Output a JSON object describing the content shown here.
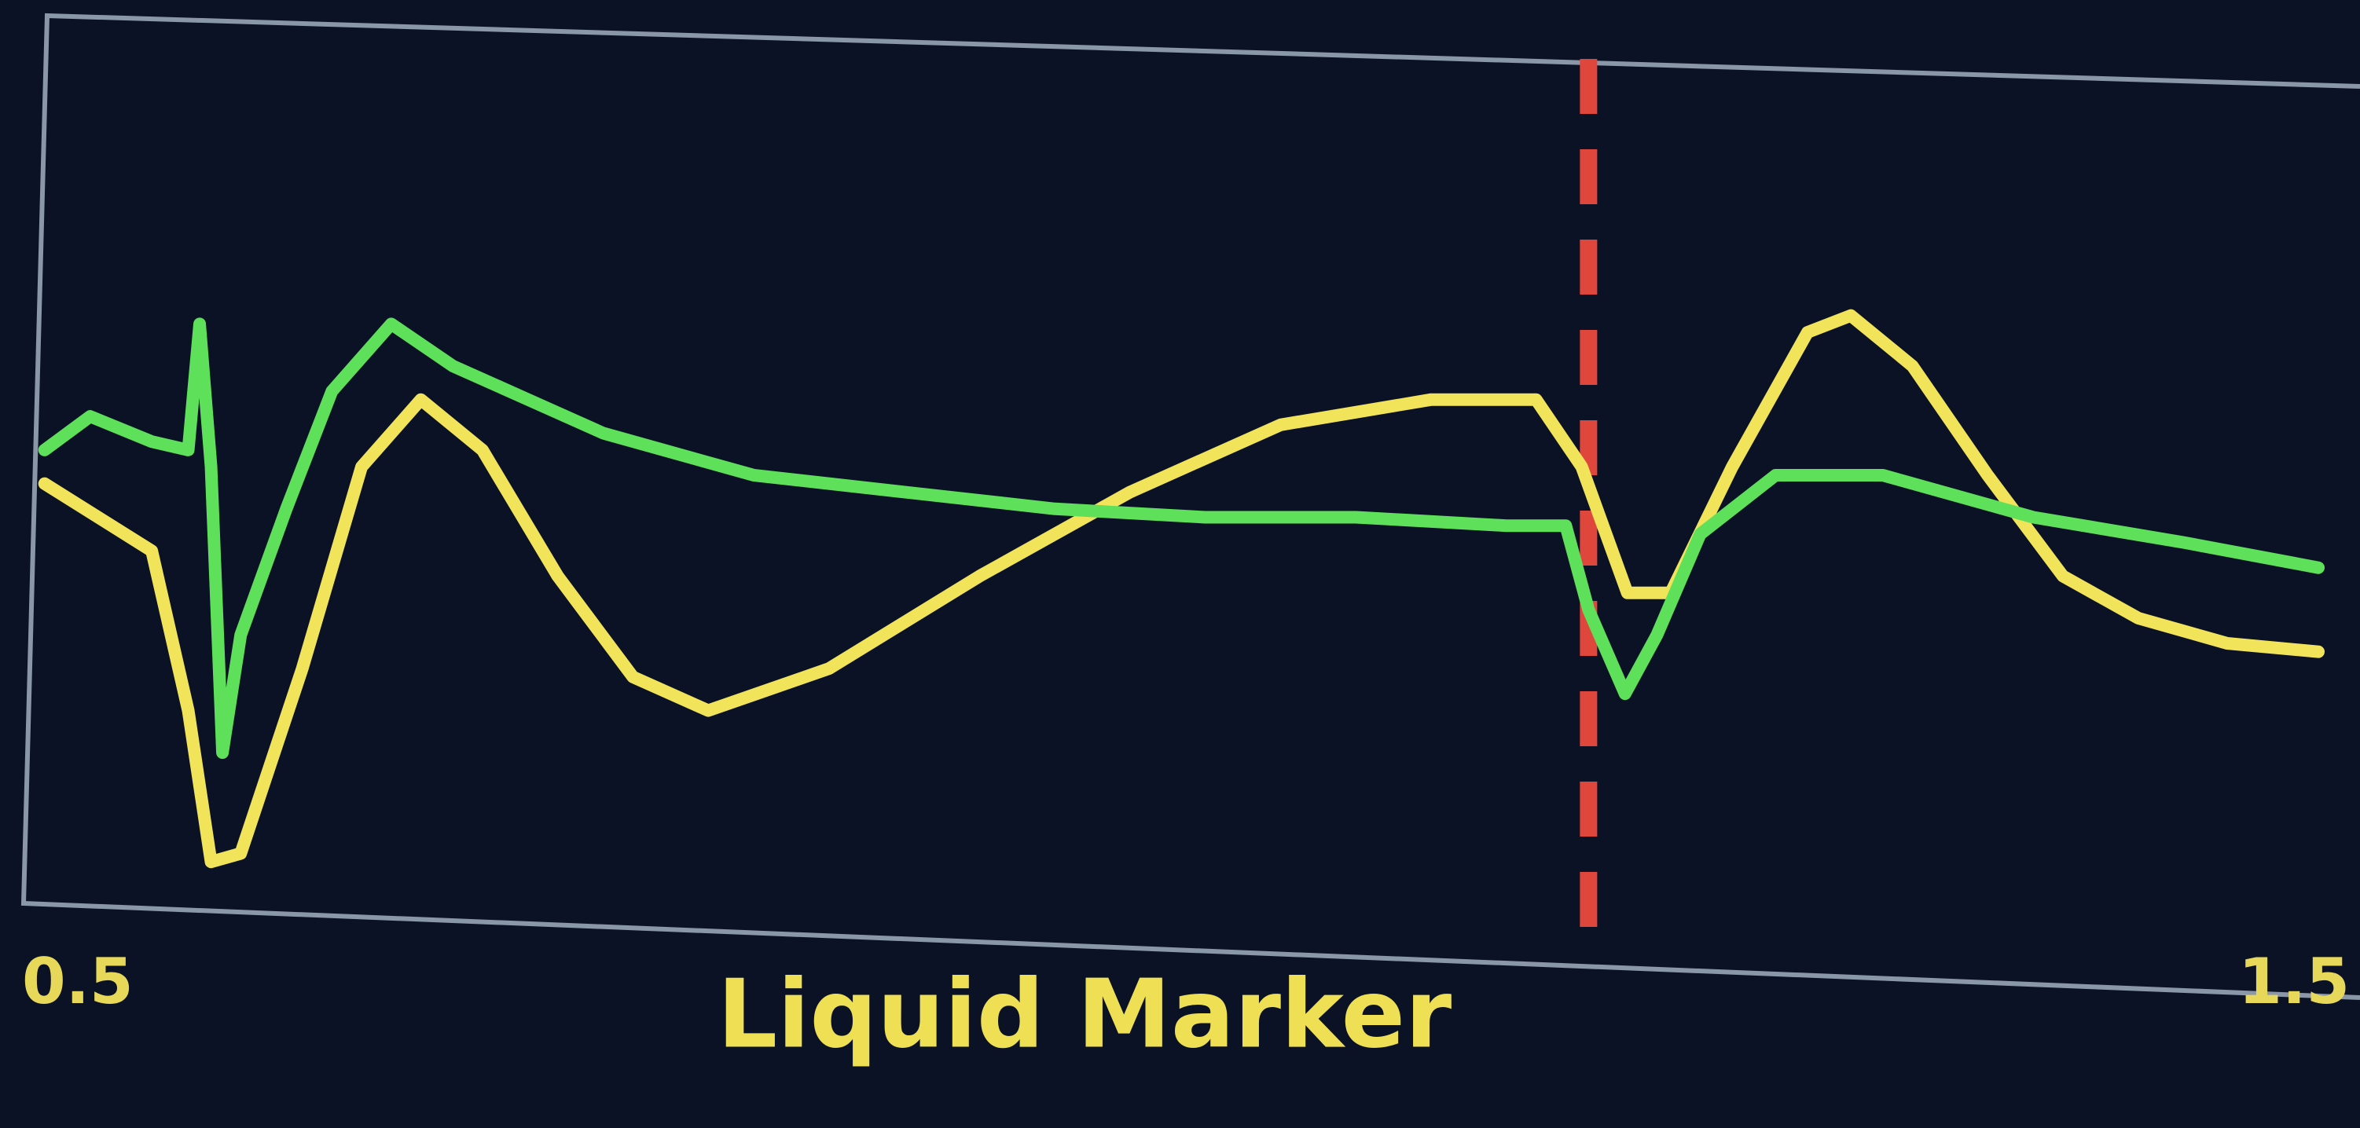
{
  "chart_data": {
    "type": "line",
    "xlim": [
      0.5,
      1.5
    ],
    "xticks": [
      0.5,
      1.5
    ],
    "ylim": [
      0,
      1
    ],
    "marker": {
      "x": 1.18,
      "label": "Liquid Marker",
      "color": "#e0473c"
    },
    "series": [
      {
        "color": "#f2e45a",
        "x": [
          0.503,
          0.55,
          0.566,
          0.576,
          0.589,
          0.616,
          0.642,
          0.668,
          0.695,
          0.728,
          0.761,
          0.794,
          0.847,
          0.913,
          0.979,
          1.045,
          1.111,
          1.157,
          1.177,
          1.197,
          1.216,
          1.243,
          1.276,
          1.295,
          1.322,
          1.355,
          1.388,
          1.421,
          1.46,
          1.5
        ],
        "values": [
          0.49,
          0.41,
          0.22,
          0.04,
          0.05,
          0.27,
          0.51,
          0.59,
          0.53,
          0.38,
          0.26,
          0.22,
          0.27,
          0.38,
          0.48,
          0.56,
          0.59,
          0.59,
          0.51,
          0.36,
          0.36,
          0.51,
          0.67,
          0.69,
          0.63,
          0.5,
          0.38,
          0.33,
          0.3,
          0.29
        ]
      },
      {
        "color": "#5fe05a",
        "x": [
          0.503,
          0.523,
          0.55,
          0.566,
          0.571,
          0.576,
          0.581,
          0.589,
          0.609,
          0.629,
          0.655,
          0.682,
          0.748,
          0.814,
          0.88,
          0.946,
          1.012,
          1.078,
          1.144,
          1.17,
          1.18,
          1.196,
          1.21,
          1.229,
          1.262,
          1.309,
          1.375,
          1.441,
          1.5
        ],
        "values": [
          0.53,
          0.57,
          0.54,
          0.53,
          0.68,
          0.51,
          0.17,
          0.31,
          0.46,
          0.6,
          0.68,
          0.63,
          0.55,
          0.5,
          0.48,
          0.46,
          0.45,
          0.45,
          0.44,
          0.44,
          0.34,
          0.24,
          0.31,
          0.43,
          0.5,
          0.5,
          0.45,
          0.42,
          0.39
        ]
      }
    ]
  }
}
